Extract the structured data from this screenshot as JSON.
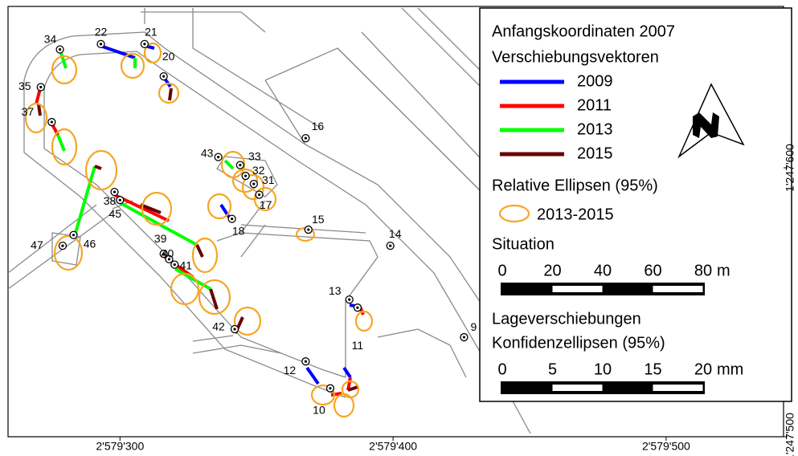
{
  "map": {
    "xlim": [
      2579259,
      2579543
    ],
    "ylim": [
      1247500,
      1247660
    ],
    "xticks": [
      {
        "value": 2579300,
        "label": "2'579'300"
      },
      {
        "value": 2579400,
        "label": "2'579'400"
      },
      {
        "value": 2579500,
        "label": "2'579'500"
      }
    ],
    "yticks": [
      {
        "value": 1247600,
        "label": "1'247'600"
      },
      {
        "value": 1247500,
        "label": "1'247'500"
      }
    ],
    "points": [
      {
        "label": "22",
        "e": 2579293,
        "n": 1247646
      },
      {
        "label": "21",
        "e": 2579309,
        "n": 1247646
      },
      {
        "label": "20",
        "e": 2579316,
        "n": 1247634
      },
      {
        "label": "34",
        "e": 2579278,
        "n": 1247644
      },
      {
        "label": "35",
        "e": 2579271,
        "n": 1247630
      },
      {
        "label": "37",
        "e": 2579275,
        "n": 1247617
      },
      {
        "label": "16",
        "e": 2579368,
        "n": 1247611
      },
      {
        "label": "43",
        "e": 2579336,
        "n": 1247604
      },
      {
        "label": "33",
        "e": 2579344,
        "n": 1247601
      },
      {
        "label": "32",
        "e": 2579346,
        "n": 1247597
      },
      {
        "label": "31",
        "e": 2579349,
        "n": 1247594
      },
      {
        "label": "17",
        "e": 2579351,
        "n": 1247590
      },
      {
        "label": "38",
        "e": 2579298,
        "n": 1247591
      },
      {
        "label": "45",
        "e": 2579300,
        "n": 1247588
      },
      {
        "label": "18",
        "e": 2579341,
        "n": 1247581
      },
      {
        "label": "15",
        "e": 2579369,
        "n": 1247577
      },
      {
        "label": "14",
        "e": 2579399,
        "n": 1247571
      },
      {
        "label": "47",
        "e": 2579279,
        "n": 1247571
      },
      {
        "label": "46",
        "e": 2579283,
        "n": 1247575
      },
      {
        "label": "39",
        "e": 2579316,
        "n": 1247568
      },
      {
        "label": "40",
        "e": 2579318,
        "n": 1247566
      },
      {
        "label": "41",
        "e": 2579320,
        "n": 1247564
      },
      {
        "label": "13",
        "e": 2579384,
        "n": 1247551
      },
      {
        "label": "9",
        "e": 2579426,
        "n": 1247537
      },
      {
        "label": "42",
        "e": 2579342,
        "n": 1247540
      },
      {
        "label": "11",
        "e": 2579387,
        "n": 1247548
      },
      {
        "label": "12",
        "e": 2579368,
        "n": 1247528
      },
      {
        "label": "10",
        "e": 2579377,
        "n": 1247518
      }
    ]
  },
  "legend": {
    "title": "Anfangskoordinaten 2007",
    "vectors_title": "Verschiebungsvektoren",
    "series": [
      {
        "name": "2009",
        "color": "#0000ff"
      },
      {
        "name": "2011",
        "color": "#ff0000"
      },
      {
        "name": "2013",
        "color": "#00ff00"
      },
      {
        "name": "2015",
        "color": "#6b0000"
      }
    ],
    "ellipse_title": "Relative Ellipsen (95%)",
    "ellipse": {
      "name": "2013-2015",
      "color": "#f5a623"
    },
    "situation": {
      "title": "Situation",
      "ticks": [
        0,
        20,
        40,
        60,
        80
      ],
      "unit": "m"
    },
    "displacement": {
      "title": "Lageverschiebungen",
      "subtitle": "Konfidenzellipsen (95%)",
      "ticks": [
        0,
        5,
        10,
        15,
        20
      ],
      "unit": "mm"
    }
  }
}
